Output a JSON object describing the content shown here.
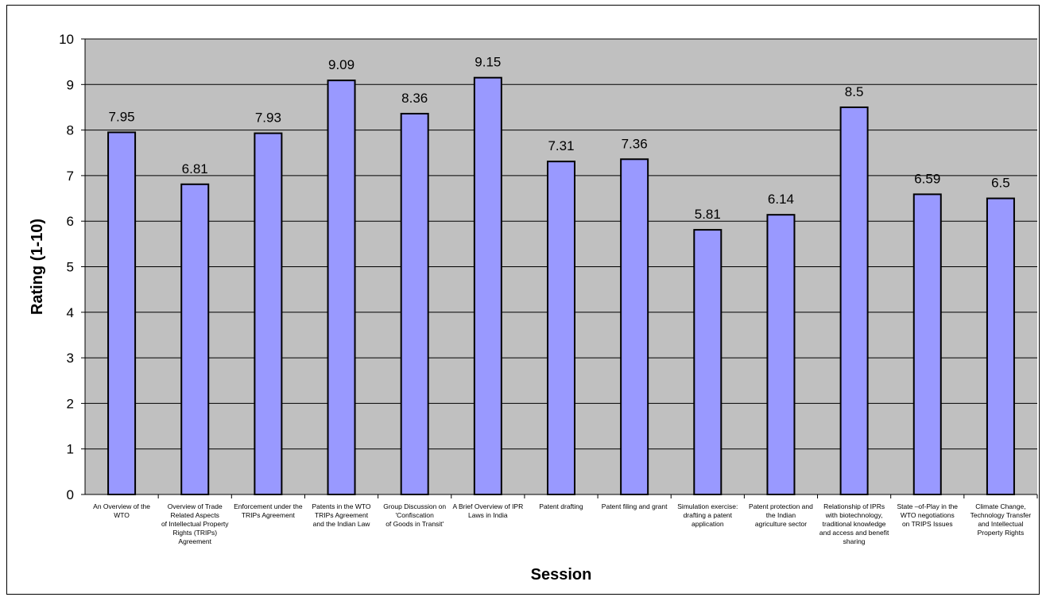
{
  "chart_data": {
    "type": "bar",
    "title": "",
    "xlabel": "Session",
    "ylabel": "Rating (1-10)",
    "ylim": [
      0,
      10
    ],
    "yticks": [
      0,
      1,
      2,
      3,
      4,
      5,
      6,
      7,
      8,
      9,
      10
    ],
    "grid": true,
    "legend": "none",
    "categories": [
      [
        "An Overview of the",
        "WTO"
      ],
      [
        "Overview of Trade",
        "Related Aspects",
        "of Intellectual Property",
        "Rights (TRIPs)",
        "Agreement"
      ],
      [
        "Enforcement under the",
        "TRIPs Agreement"
      ],
      [
        "Patents in the WTO",
        "TRIPs Agreement",
        "and the Indian Law"
      ],
      [
        "Group Discussion on",
        "'Confiscation",
        "of Goods in Transit'"
      ],
      [
        "A Brief Overview of IPR",
        "Laws in India"
      ],
      [
        "Patent drafting"
      ],
      [
        "Patent filing and grant"
      ],
      [
        "Simulation exercise:",
        "drafting a patent",
        "application"
      ],
      [
        "Patent protection and",
        "the Indian",
        "agriculture sector"
      ],
      [
        "Relationship of IPRs",
        "with biotechnology,",
        "traditional knowledge",
        "and access and benefit",
        "sharing"
      ],
      [
        "State –of-Play in the",
        "WTO negotiations",
        "on TRIPS Issues"
      ],
      [
        "Climate Change,",
        "Technology Transfer",
        "and Intellectual",
        "Property Rights"
      ]
    ],
    "values": [
      7.95,
      6.81,
      7.93,
      9.09,
      8.36,
      9.15,
      7.31,
      7.36,
      5.81,
      6.14,
      8.5,
      6.59,
      6.5
    ],
    "data_labels": [
      "7.95",
      "6.81",
      "7.93",
      "9.09",
      "8.36",
      "9.15",
      "7.31",
      "7.36",
      "5.81",
      "6.14",
      "8.5",
      "6.59",
      "6.5"
    ],
    "colors": {
      "plot_background": "#c0c0c0",
      "bar_fill": "#9999ff",
      "bar_stroke": "#000000",
      "gridline": "#000000",
      "text": "#000000"
    }
  }
}
